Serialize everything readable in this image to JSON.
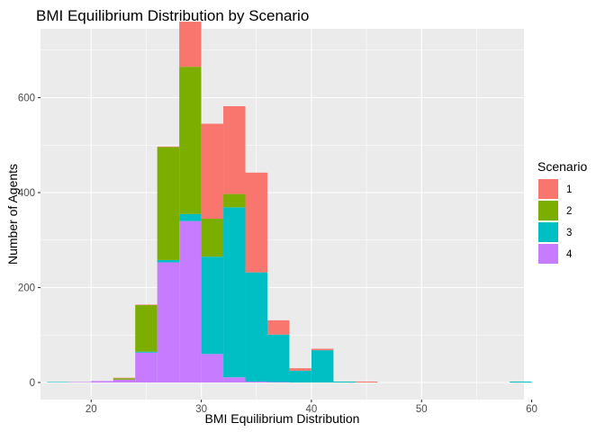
{
  "chart_data": {
    "type": "bar",
    "subtype": "stacked-histogram",
    "title": "BMI Equilibrium Distribution by Scenario",
    "xlabel": "BMI Equilibrium Distribution",
    "ylabel": "Number of Agents",
    "xlim": [
      15.4,
      59.3
    ],
    "ylim": [
      -36,
      745
    ],
    "xticks": [
      20,
      30,
      40,
      50,
      60
    ],
    "yticks": [
      0,
      200,
      400,
      600
    ],
    "grid": true,
    "bin_width": 2,
    "bin_starts": [
      16,
      18,
      20,
      22,
      24,
      26,
      28,
      30,
      32,
      34,
      36,
      38,
      40,
      42,
      44,
      46,
      48,
      50,
      52,
      54,
      56,
      58
    ],
    "legend": {
      "title": "Scenario",
      "position": "right"
    },
    "series": [
      {
        "name": "1",
        "color": "#F8766D",
        "values": [
          0,
          0,
          0,
          1,
          1,
          1,
          95,
          200,
          185,
          210,
          30,
          5,
          3,
          0,
          2,
          0,
          0,
          0,
          0,
          0,
          0,
          0
        ]
      },
      {
        "name": "2",
        "color": "#7CAE00",
        "values": [
          0,
          0,
          0,
          3,
          98,
          238,
          310,
          80,
          28,
          0,
          0,
          0,
          0,
          0,
          0,
          0,
          0,
          0,
          0,
          0,
          0,
          0
        ]
      },
      {
        "name": "3",
        "color": "#00BFC4",
        "values": [
          1,
          0,
          0,
          0,
          2,
          5,
          15,
          205,
          358,
          230,
          100,
          25,
          68,
          2,
          0,
          0,
          0,
          0,
          0,
          0,
          0,
          2
        ]
      },
      {
        "name": "4",
        "color": "#C77CFF",
        "values": [
          0,
          1,
          3,
          6,
          63,
          253,
          340,
          60,
          11,
          2,
          1,
          0,
          0,
          0,
          0,
          0,
          0,
          0,
          0,
          0,
          0,
          0
        ]
      }
    ]
  }
}
